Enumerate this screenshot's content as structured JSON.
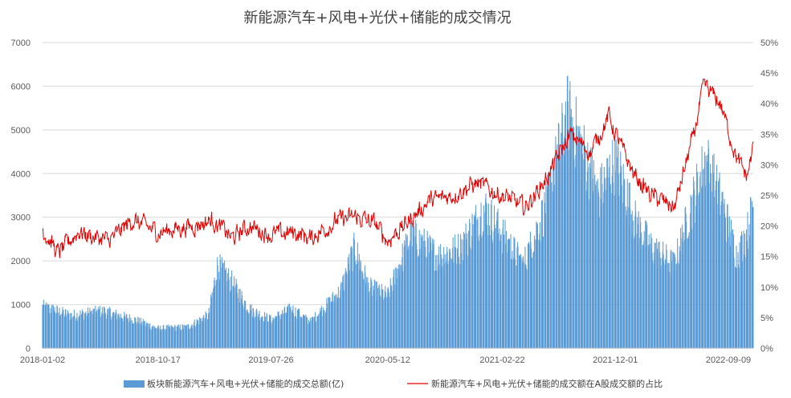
{
  "chart_data": {
    "type": "bar+line",
    "title": "新能源汽车+风电+光伏+储能的成交情况",
    "x_tick_labels": [
      "2018-01-02",
      "2018-10-17",
      "2019-07-26",
      "2020-05-12",
      "2021-02-22",
      "2021-12-01",
      "2022-09-09"
    ],
    "y_left": {
      "ylim": [
        0,
        7000
      ],
      "ticks": [
        "0",
        "1000",
        "2000",
        "3000",
        "4000",
        "5000",
        "6000",
        "7000"
      ]
    },
    "y_right": {
      "ylim": [
        0,
        0.5
      ],
      "ticks": [
        "0%",
        "5%",
        "10%",
        "15%",
        "20%",
        "25%",
        "30%",
        "35%",
        "40%",
        "45%",
        "50%"
      ]
    },
    "grid": true,
    "legend_position": "bottom",
    "colors": {
      "bar": "#5B9BD5",
      "line": "#E00000",
      "grid": "#D9D9D9",
      "axis": "#BFBFBF"
    },
    "series": [
      {
        "name": "板块新能源汽车+风电+光伏+储能的成交总额(亿)",
        "type": "bar",
        "axis": "left",
        "anchors": [
          {
            "d": "2018-01-02",
            "v": 950
          },
          {
            "d": "2018-03-15",
            "v": 750
          },
          {
            "d": "2018-06-01",
            "v": 850
          },
          {
            "d": "2018-08-20",
            "v": 650
          },
          {
            "d": "2018-10-17",
            "v": 450
          },
          {
            "d": "2018-12-28",
            "v": 480
          },
          {
            "d": "2019-02-20",
            "v": 750
          },
          {
            "d": "2019-03-15",
            "v": 1900
          },
          {
            "d": "2019-04-20",
            "v": 1500
          },
          {
            "d": "2019-06-01",
            "v": 900
          },
          {
            "d": "2019-07-26",
            "v": 650
          },
          {
            "d": "2019-09-15",
            "v": 900
          },
          {
            "d": "2019-11-01",
            "v": 600
          },
          {
            "d": "2020-01-15",
            "v": 1300
          },
          {
            "d": "2020-02-20",
            "v": 2300
          },
          {
            "d": "2020-03-25",
            "v": 1400
          },
          {
            "d": "2020-05-12",
            "v": 1200
          },
          {
            "d": "2020-07-10",
            "v": 2600
          },
          {
            "d": "2020-09-15",
            "v": 2100
          },
          {
            "d": "2020-11-10",
            "v": 2300
          },
          {
            "d": "2021-01-08",
            "v": 3200
          },
          {
            "d": "2021-02-22",
            "v": 2600
          },
          {
            "d": "2021-04-15",
            "v": 1900
          },
          {
            "d": "2021-06-10",
            "v": 3200
          },
          {
            "d": "2021-08-05",
            "v": 5400
          },
          {
            "d": "2021-09-20",
            "v": 4300
          },
          {
            "d": "2021-10-20",
            "v": 3500
          },
          {
            "d": "2021-12-01",
            "v": 4300
          },
          {
            "d": "2022-01-20",
            "v": 2900
          },
          {
            "d": "2022-03-01",
            "v": 2300
          },
          {
            "d": "2022-04-27",
            "v": 1900
          },
          {
            "d": "2022-06-10",
            "v": 3300
          },
          {
            "d": "2022-07-15",
            "v": 4300
          },
          {
            "d": "2022-08-25",
            "v": 3300
          },
          {
            "d": "2022-09-30",
            "v": 2100
          },
          {
            "d": "2022-10-25",
            "v": 2600
          },
          {
            "d": "2022-11-10",
            "v": 3300
          }
        ]
      },
      {
        "name": "新能源汽车+风电+光伏+储能的成交额在A股成交额的占比",
        "type": "line",
        "axis": "right",
        "anchors": [
          {
            "d": "2018-01-02",
            "v": 0.195
          },
          {
            "d": "2018-02-10",
            "v": 0.155
          },
          {
            "d": "2018-04-01",
            "v": 0.19
          },
          {
            "d": "2018-06-15",
            "v": 0.175
          },
          {
            "d": "2018-08-15",
            "v": 0.21
          },
          {
            "d": "2018-10-17",
            "v": 0.19
          },
          {
            "d": "2019-01-15",
            "v": 0.2
          },
          {
            "d": "2019-03-01",
            "v": 0.21
          },
          {
            "d": "2019-04-20",
            "v": 0.18
          },
          {
            "d": "2019-06-01",
            "v": 0.2
          },
          {
            "d": "2019-07-26",
            "v": 0.185
          },
          {
            "d": "2019-09-20",
            "v": 0.19
          },
          {
            "d": "2019-11-01",
            "v": 0.18
          },
          {
            "d": "2020-01-10",
            "v": 0.21
          },
          {
            "d": "2020-02-20",
            "v": 0.215
          },
          {
            "d": "2020-04-10",
            "v": 0.205
          },
          {
            "d": "2020-05-12",
            "v": 0.175
          },
          {
            "d": "2020-07-15",
            "v": 0.215
          },
          {
            "d": "2020-08-20",
            "v": 0.24
          },
          {
            "d": "2020-10-20",
            "v": 0.25
          },
          {
            "d": "2020-12-20",
            "v": 0.27
          },
          {
            "d": "2021-02-22",
            "v": 0.25
          },
          {
            "d": "2021-04-20",
            "v": 0.23
          },
          {
            "d": "2021-06-15",
            "v": 0.28
          },
          {
            "d": "2021-08-10",
            "v": 0.35
          },
          {
            "d": "2021-09-30",
            "v": 0.32
          },
          {
            "d": "2021-11-15",
            "v": 0.38
          },
          {
            "d": "2021-12-01",
            "v": 0.35
          },
          {
            "d": "2022-01-20",
            "v": 0.28
          },
          {
            "d": "2022-03-01",
            "v": 0.25
          },
          {
            "d": "2022-04-27",
            "v": 0.23
          },
          {
            "d": "2022-06-15",
            "v": 0.35
          },
          {
            "d": "2022-07-10",
            "v": 0.43
          },
          {
            "d": "2022-08-20",
            "v": 0.4
          },
          {
            "d": "2022-09-30",
            "v": 0.31
          },
          {
            "d": "2022-10-25",
            "v": 0.28
          },
          {
            "d": "2022-11-10",
            "v": 0.33
          }
        ]
      }
    ]
  }
}
